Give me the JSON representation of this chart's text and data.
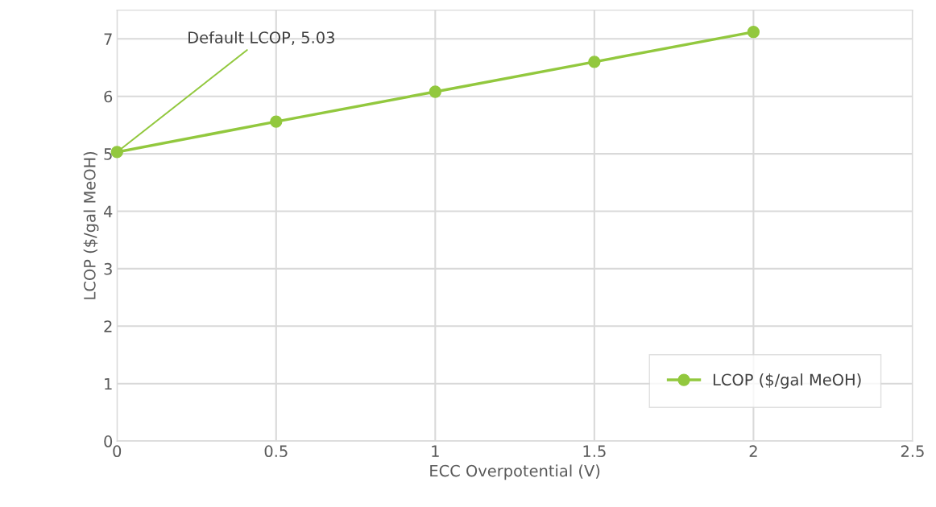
{
  "chart_data": {
    "type": "line",
    "x": [
      0,
      0.5,
      1,
      1.5,
      2
    ],
    "series": [
      {
        "name": "LCOP ($/gal MeOH)",
        "color": "#92c83e",
        "values": [
          5.03,
          5.56,
          6.08,
          6.6,
          7.12
        ]
      }
    ],
    "xlabel": "ECC Overpotential (V)",
    "ylabel": "LCOP ($/gal MeOH)",
    "xlim": [
      0,
      2.5
    ],
    "xticks": [
      0,
      0.5,
      1,
      1.5,
      2,
      2.5
    ],
    "ylim": [
      0,
      7.5
    ],
    "yticks": [
      0,
      1,
      2,
      3,
      4,
      5,
      6,
      7
    ],
    "annotations": [
      {
        "text": "Default LCOP, 5.03",
        "x": 0,
        "y": 5.03
      }
    ],
    "grid": true,
    "legend": "bottom right",
    "marker": "circle",
    "line_style": "solid"
  }
}
